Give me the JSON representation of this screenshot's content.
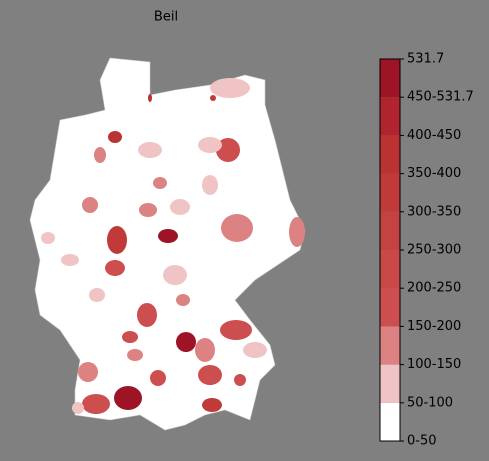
{
  "map": {
    "title": "Beil",
    "colorbar": {
      "labels": [
        "0-50",
        "50-100",
        "100-150",
        "150-200",
        "200-250",
        "250-300",
        "300-350",
        "350-400",
        "400-450",
        "450-531.7",
        "531.7"
      ],
      "colors": [
        "#ffffff",
        "#f0c4c4",
        "#dc8282",
        "#cd4e4e",
        "#c94848",
        "#c54242",
        "#c13a3a",
        "#bb3232",
        "#b02430",
        "#9c1426"
      ]
    }
  }
}
